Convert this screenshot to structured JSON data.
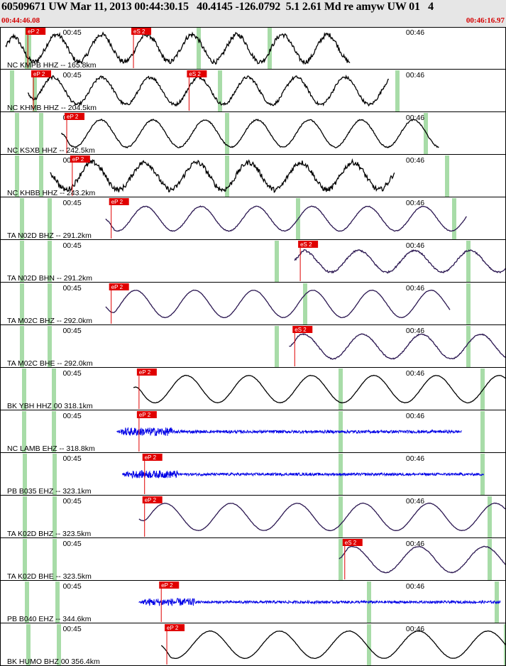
{
  "header": {
    "title": "60509671 UW Mar 11, 2013 00:44:30.15   40.4145 -126.0792  5.1 2.61 Md re amyw UW 01   4",
    "start_time": "00:44:46.08",
    "end_time": "00:46:16.97"
  },
  "colors": {
    "header_bg": "#e6e6e6",
    "time_red": "#d40000",
    "pick_red": "#e00000",
    "window_green": "#a8dca8",
    "trace_black": "#000000",
    "trace_purple": "#2a1650",
    "trace_blue": "#0000e6"
  },
  "chart_data": {
    "type": "seismogram",
    "event_id": "60509671",
    "network": "UW",
    "origin_time": "Mar 11, 2013 00:44:30.15",
    "latitude": 40.4145,
    "longitude": -126.0792,
    "magnitude": 5.1,
    "time_window": [
      "00:44:46.08",
      "00:46:16.97"
    ],
    "tick_labels": [
      "00:45",
      "00:46"
    ],
    "traces": [
      {
        "label": "NC KMPB HHZ -- 165.8km",
        "color": "black",
        "amp": 1.0,
        "period": 26,
        "noise": 0.55,
        "picks": [
          {
            "phase": "eP 2",
            "t": 5
          },
          {
            "phase": "eS 2",
            "t": 24
          }
        ],
        "windows": [
          38,
          41,
          280,
          380
        ]
      },
      {
        "label": "NC KHMB HHZ -- 204.5km",
        "color": "black",
        "amp": 1.0,
        "period": 28,
        "noise": 0.35,
        "picks": [
          {
            "phase": "eP 2",
            "t": 6
          },
          {
            "phase": "eS 2",
            "t": 34
          }
        ],
        "windows": [
          17,
          49,
          310,
          560
        ]
      },
      {
        "label": "NC KSXB HHZ -- 242.5km",
        "color": "black",
        "amp": 1.0,
        "period": 30,
        "noise": 0.15,
        "picks": [
          {
            "phase": "eP 2",
            "t": 12
          }
        ],
        "windows": [
          24,
          58,
          320,
          600
        ]
      },
      {
        "label": "NC KHBB HHZ -- 243.2km",
        "color": "black",
        "amp": 1.0,
        "period": 30,
        "noise": 0.6,
        "picks": [
          {
            "phase": "eP 2",
            "t": 13
          }
        ],
        "windows": [
          24,
          58,
          320,
          630
        ]
      },
      {
        "label": "TA N02D BHZ -- 291.2km",
        "color": "purple",
        "amp": 0.9,
        "period": 32,
        "noise": 0.1,
        "picks": [
          {
            "phase": "eP 2",
            "t": 20
          }
        ],
        "windows": [
          31,
          70,
          420,
          640
        ]
      },
      {
        "label": "TA N02D BHN -- 291.2km",
        "color": "purple",
        "amp": 0.8,
        "period": 32,
        "noise": 0.25,
        "picks": [
          {
            "phase": "eS 2",
            "t": 54
          }
        ],
        "windows": [
          31,
          70,
          390,
          660
        ]
      },
      {
        "label": "TA M02C BHZ -- 292.0km",
        "color": "purple",
        "amp": 1.0,
        "period": 34,
        "noise": 0.05,
        "picks": [
          {
            "phase": "eP 2",
            "t": 20
          }
        ],
        "windows": [
          31,
          70,
          430,
          660
        ]
      },
      {
        "label": "TA M02C BHE -- 292.0km",
        "color": "purple",
        "amp": 0.9,
        "period": 34,
        "noise": 0.15,
        "picks": [
          {
            "phase": "eS 2",
            "t": 53
          }
        ],
        "windows": [
          31,
          70,
          390,
          660
        ]
      },
      {
        "label": "BK YBH HHZ 00 318.1km",
        "color": "black",
        "amp": 1.0,
        "period": 36,
        "noise": 0.05,
        "picks": [
          {
            "phase": "eP 2",
            "t": 25
          }
        ],
        "windows": [
          34,
          76,
          480,
          680
        ]
      },
      {
        "label": "NC LAMB EHZ -- 318.8km",
        "color": "blue",
        "amp": 0.55,
        "period": 4,
        "noise": 0.9,
        "picks": [
          {
            "phase": "eP 2",
            "t": 25
          }
        ],
        "windows": [
          34,
          76,
          480,
          680
        ]
      },
      {
        "label": "PB B035 EHZ -- 323.1km",
        "color": "blue",
        "amp": 0.5,
        "period": 4,
        "noise": 0.9,
        "picks": [
          {
            "phase": "eP 2",
            "t": 26
          }
        ],
        "windows": [
          35,
          77,
          480,
          680
        ]
      },
      {
        "label": "TA K02D BHZ -- 323.5km",
        "color": "purple",
        "amp": 1.0,
        "period": 38,
        "noise": 0.05,
        "picks": [
          {
            "phase": "eP 2",
            "t": 26
          }
        ],
        "windows": [
          35,
          77,
          480,
          690
        ]
      },
      {
        "label": "TA K02D BHE -- 323.5km",
        "color": "purple",
        "amp": 0.95,
        "period": 38,
        "noise": 0.1,
        "picks": [
          {
            "phase": "eS 2",
            "t": 62
          }
        ],
        "windows": [
          35,
          77,
          480,
          690
        ]
      },
      {
        "label": "PB B040 EHZ -- 344.6km",
        "color": "blue",
        "amp": 0.5,
        "period": 4,
        "noise": 0.9,
        "picks": [
          {
            "phase": "eP 2",
            "t": 29
          }
        ],
        "windows": [
          38,
          81,
          520,
          700
        ]
      },
      {
        "label": "BK HUMO BHZ 00 356.4km",
        "color": "black",
        "amp": 1.0,
        "period": 40,
        "noise": 0.05,
        "picks": [
          {
            "phase": "eP 2",
            "t": 30
          }
        ],
        "windows": [
          40,
          83,
          520,
          713
        ]
      }
    ]
  }
}
